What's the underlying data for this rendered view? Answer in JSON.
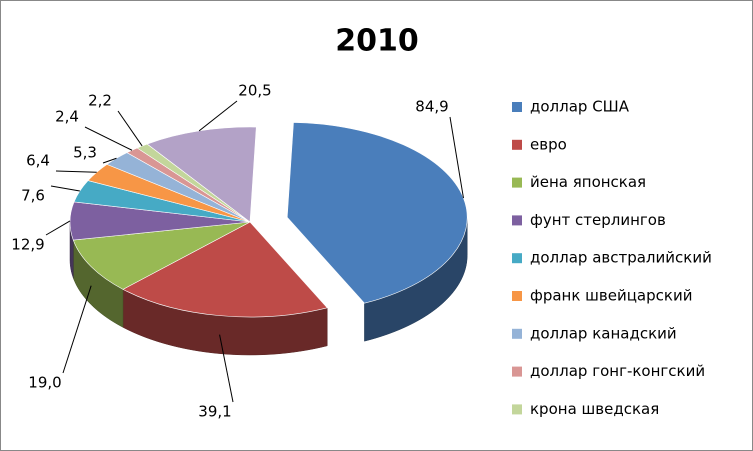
{
  "chart_data": {
    "type": "pie",
    "title": "2010",
    "categories": [
      "доллар США",
      "евро",
      "йена японская",
      "фунт стерлингов",
      "доллар австралийский",
      "франк швейцарский",
      "доллар канадский",
      "доллар гонг-конгский",
      "крона шведская",
      null
    ],
    "values": [
      84.9,
      39.1,
      19.0,
      12.9,
      7.6,
      6.4,
      5.3,
      2.4,
      2.2,
      20.5
    ],
    "value_labels": [
      "84,9",
      "39,1",
      "19,0",
      "12,9",
      "7,6",
      "6,4",
      "5,3",
      "2,4",
      "2,2",
      "20,5"
    ],
    "colors": [
      "#4a7ebb",
      "#be4b48",
      "#98b954",
      "#7d60a0",
      "#46aac5",
      "#f79646",
      "#95b3d7",
      "#d99694",
      "#c3d69b",
      "#b3a2c7"
    ]
  }
}
